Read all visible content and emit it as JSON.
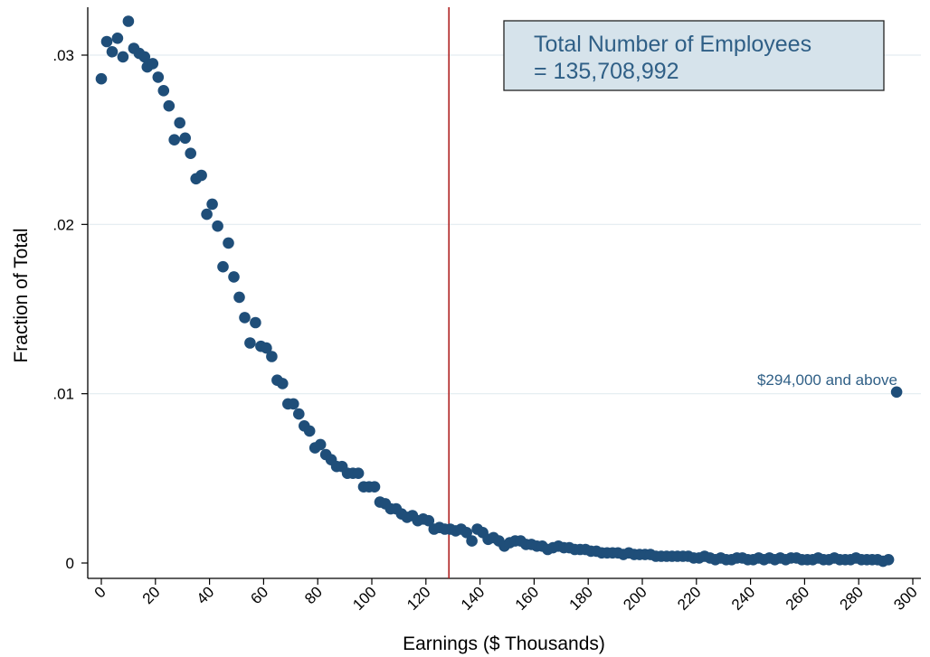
{
  "chart_data": {
    "type": "scatter",
    "xlabel": "Earnings ($ Thousands)",
    "ylabel": "Fraction of Total",
    "xlim": [
      0,
      300
    ],
    "ylim": [
      0,
      0.033
    ],
    "xticks": [
      0,
      20,
      40,
      60,
      80,
      100,
      120,
      140,
      160,
      180,
      200,
      220,
      240,
      260,
      280,
      300
    ],
    "xtick_labels": [
      "0",
      "20",
      "40",
      "60",
      "80",
      "100",
      "120",
      "140",
      "160",
      "180",
      "200",
      "220",
      "240",
      "260",
      "280",
      "300"
    ],
    "yticks": [
      0,
      0.01,
      0.02,
      0.03
    ],
    "ytick_labels": [
      "0",
      ".01",
      ".02",
      ".03"
    ],
    "grid": "horizontal",
    "vertical_line_x": 128.5,
    "legend_text_line1": "Total Number of Employees",
    "legend_text_line2": "=  135,708,992",
    "legend_position": "top-right",
    "annotation": {
      "text": "$294,000 and above",
      "x": 294,
      "y": 0.0101
    },
    "colors": {
      "points": "#1f4e79",
      "vline": "#b02222",
      "legend_fill": "#d6e3eb",
      "text_accent": "#2f5f86",
      "grid": "#e3ecf0"
    },
    "series": [
      {
        "points": [
          [
            0,
            0.0286
          ],
          [
            2,
            0.0308
          ],
          [
            4,
            0.0302
          ],
          [
            6,
            0.031
          ],
          [
            8,
            0.0299
          ],
          [
            10,
            0.032
          ],
          [
            12,
            0.0304
          ],
          [
            14,
            0.0301
          ],
          [
            16,
            0.0299
          ],
          [
            17,
            0.0293
          ],
          [
            19,
            0.0295
          ],
          [
            21,
            0.0287
          ],
          [
            23,
            0.0279
          ],
          [
            25,
            0.027
          ],
          [
            27,
            0.025
          ],
          [
            29,
            0.026
          ],
          [
            31,
            0.0251
          ],
          [
            33,
            0.0242
          ],
          [
            35,
            0.0227
          ],
          [
            37,
            0.0229
          ],
          [
            39,
            0.0206
          ],
          [
            41,
            0.0212
          ],
          [
            43,
            0.0199
          ],
          [
            45,
            0.0175
          ],
          [
            47,
            0.0189
          ],
          [
            49,
            0.0169
          ],
          [
            51,
            0.0157
          ],
          [
            53,
            0.0145
          ],
          [
            55,
            0.013
          ],
          [
            57,
            0.0142
          ],
          [
            59,
            0.0128
          ],
          [
            61,
            0.0127
          ],
          [
            63,
            0.0122
          ],
          [
            65,
            0.0108
          ],
          [
            67,
            0.0106
          ],
          [
            69,
            0.0094
          ],
          [
            71,
            0.0094
          ],
          [
            73,
            0.0088
          ],
          [
            75,
            0.0081
          ],
          [
            77,
            0.0078
          ],
          [
            79,
            0.0068
          ],
          [
            81,
            0.007
          ],
          [
            83,
            0.0064
          ],
          [
            85,
            0.0061
          ],
          [
            87,
            0.0057
          ],
          [
            89,
            0.0057
          ],
          [
            91,
            0.0053
          ],
          [
            93,
            0.0053
          ],
          [
            95,
            0.0053
          ],
          [
            97,
            0.0045
          ],
          [
            99,
            0.0045
          ],
          [
            101,
            0.0045
          ],
          [
            103,
            0.0036
          ],
          [
            105,
            0.0035
          ],
          [
            107,
            0.0032
          ],
          [
            109,
            0.0032
          ],
          [
            111,
            0.0029
          ],
          [
            113,
            0.0027
          ],
          [
            115,
            0.0028
          ],
          [
            117,
            0.0025
          ],
          [
            119,
            0.0026
          ],
          [
            121,
            0.0025
          ],
          [
            123,
            0.002
          ],
          [
            125,
            0.0021
          ],
          [
            127,
            0.002
          ],
          [
            129,
            0.002
          ],
          [
            131,
            0.0019
          ],
          [
            133,
            0.002
          ],
          [
            135,
            0.0018
          ],
          [
            137,
            0.0013
          ],
          [
            139,
            0.002
          ],
          [
            141,
            0.0018
          ],
          [
            143,
            0.0014
          ],
          [
            145,
            0.0015
          ],
          [
            147,
            0.0013
          ],
          [
            149,
            0.001
          ],
          [
            151,
            0.0012
          ],
          [
            153,
            0.0013
          ],
          [
            155,
            0.0013
          ],
          [
            157,
            0.0011
          ],
          [
            159,
            0.0011
          ],
          [
            161,
            0.001
          ],
          [
            163,
            0.001
          ],
          [
            165,
            0.0008
          ],
          [
            167,
            0.0009
          ],
          [
            169,
            0.001
          ],
          [
            171,
            0.0009
          ],
          [
            173,
            0.0009
          ],
          [
            175,
            0.0008
          ],
          [
            177,
            0.0008
          ],
          [
            179,
            0.0008
          ],
          [
            181,
            0.0007
          ],
          [
            183,
            0.0007
          ],
          [
            185,
            0.0006
          ],
          [
            187,
            0.0006
          ],
          [
            189,
            0.0006
          ],
          [
            191,
            0.0006
          ],
          [
            193,
            0.0005
          ],
          [
            195,
            0.0006
          ],
          [
            197,
            0.0005
          ],
          [
            199,
            0.0005
          ],
          [
            201,
            0.0005
          ],
          [
            203,
            0.0005
          ],
          [
            205,
            0.0004
          ],
          [
            207,
            0.0004
          ],
          [
            209,
            0.0004
          ],
          [
            211,
            0.0004
          ],
          [
            213,
            0.0004
          ],
          [
            215,
            0.0004
          ],
          [
            217,
            0.0004
          ],
          [
            219,
            0.0003
          ],
          [
            221,
            0.0003
          ],
          [
            223,
            0.0004
          ],
          [
            225,
            0.0003
          ],
          [
            227,
            0.0002
          ],
          [
            229,
            0.0003
          ],
          [
            231,
            0.0002
          ],
          [
            233,
            0.0002
          ],
          [
            235,
            0.0003
          ],
          [
            237,
            0.0003
          ],
          [
            239,
            0.0002
          ],
          [
            241,
            0.0002
          ],
          [
            243,
            0.0003
          ],
          [
            245,
            0.0002
          ],
          [
            247,
            0.0003
          ],
          [
            249,
            0.0002
          ],
          [
            251,
            0.0003
          ],
          [
            253,
            0.0002
          ],
          [
            255,
            0.0003
          ],
          [
            257,
            0.0003
          ],
          [
            259,
            0.0002
          ],
          [
            261,
            0.0002
          ],
          [
            263,
            0.0002
          ],
          [
            265,
            0.0003
          ],
          [
            267,
            0.0002
          ],
          [
            269,
            0.0002
          ],
          [
            271,
            0.0003
          ],
          [
            273,
            0.0002
          ],
          [
            275,
            0.0002
          ],
          [
            277,
            0.0002
          ],
          [
            279,
            0.0003
          ],
          [
            281,
            0.0002
          ],
          [
            283,
            0.0002
          ],
          [
            285,
            0.0002
          ],
          [
            287,
            0.0002
          ],
          [
            289,
            0.0001
          ],
          [
            291,
            0.0002
          ],
          [
            294,
            0.0101
          ]
        ]
      }
    ]
  }
}
